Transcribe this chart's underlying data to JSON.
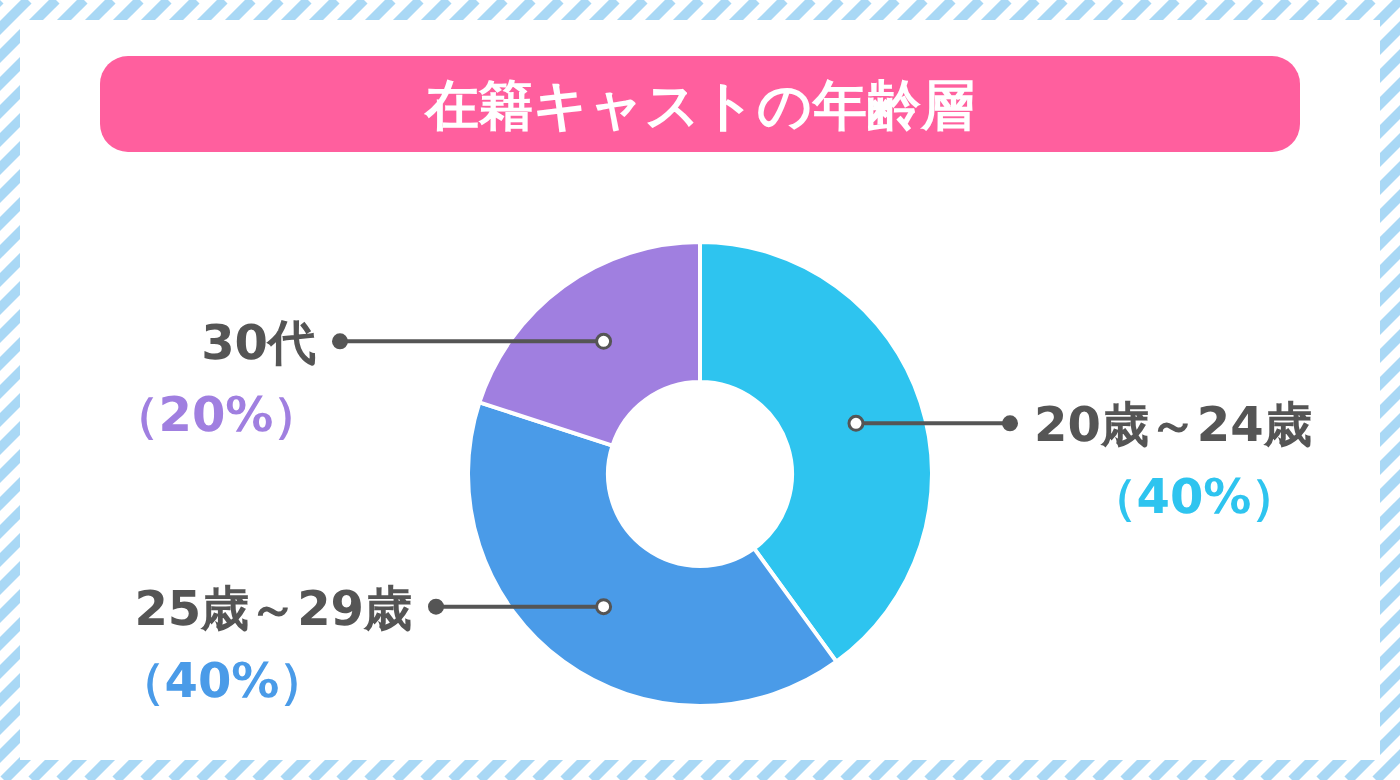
{
  "chart_data": {
    "type": "donut",
    "title": "在籍キャストの年齢層",
    "categories": [
      "20歳～24歳",
      "25歳～29歳",
      "30代"
    ],
    "values": [
      40,
      40,
      20
    ],
    "colors": [
      "#2ec4ef",
      "#4a9be8",
      "#a07fe0"
    ],
    "value_labels": [
      "（40%）",
      "（40%）",
      "（20%）"
    ]
  }
}
